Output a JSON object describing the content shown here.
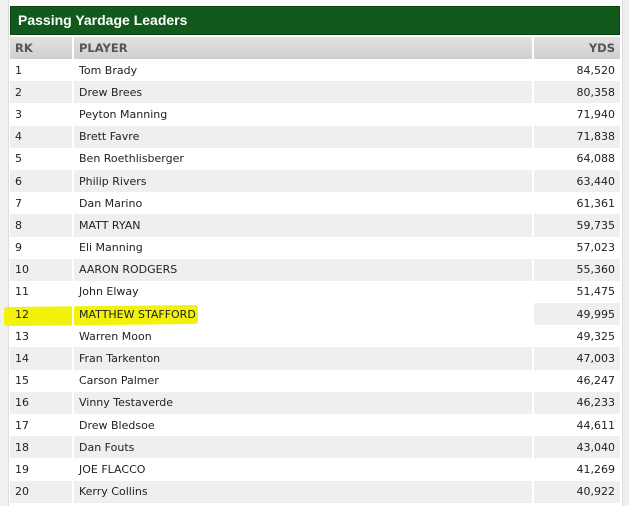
{
  "title": "Passing Yardage Leaders",
  "columns": {
    "rk": "RK",
    "player": "PLAYER",
    "yds": "YDS"
  },
  "highlight_color": "#f2f20a",
  "header_color": "#115a1c",
  "rows": [
    {
      "rk": "1",
      "player": "Tom Brady",
      "yds": "84,520"
    },
    {
      "rk": "2",
      "player": "Drew Brees",
      "yds": "80,358"
    },
    {
      "rk": "3",
      "player": "Peyton Manning",
      "yds": "71,940"
    },
    {
      "rk": "4",
      "player": "Brett Favre",
      "yds": "71,838"
    },
    {
      "rk": "5",
      "player": "Ben Roethlisberger",
      "yds": "64,088"
    },
    {
      "rk": "6",
      "player": "Philip Rivers",
      "yds": "63,440"
    },
    {
      "rk": "7",
      "player": "Dan Marino",
      "yds": "61,361"
    },
    {
      "rk": "8",
      "player": "MATT RYAN",
      "yds": "59,735"
    },
    {
      "rk": "9",
      "player": "Eli Manning",
      "yds": "57,023"
    },
    {
      "rk": "10",
      "player": "AARON RODGERS",
      "yds": "55,360"
    },
    {
      "rk": "11",
      "player": "John Elway",
      "yds": "51,475"
    },
    {
      "rk": "12",
      "player": "MATTHEW STAFFORD",
      "yds": "49,995",
      "highlighted": true
    },
    {
      "rk": "13",
      "player": "Warren Moon",
      "yds": "49,325"
    },
    {
      "rk": "14",
      "player": "Fran Tarkenton",
      "yds": "47,003"
    },
    {
      "rk": "15",
      "player": "Carson Palmer",
      "yds": "46,247"
    },
    {
      "rk": "16",
      "player": "Vinny Testaverde",
      "yds": "46,233"
    },
    {
      "rk": "17",
      "player": "Drew Bledsoe",
      "yds": "44,611"
    },
    {
      "rk": "18",
      "player": "Dan Fouts",
      "yds": "43,040"
    },
    {
      "rk": "19",
      "player": "JOE FLACCO",
      "yds": "41,269"
    },
    {
      "rk": "20",
      "player": "Kerry Collins",
      "yds": "40,922"
    }
  ]
}
